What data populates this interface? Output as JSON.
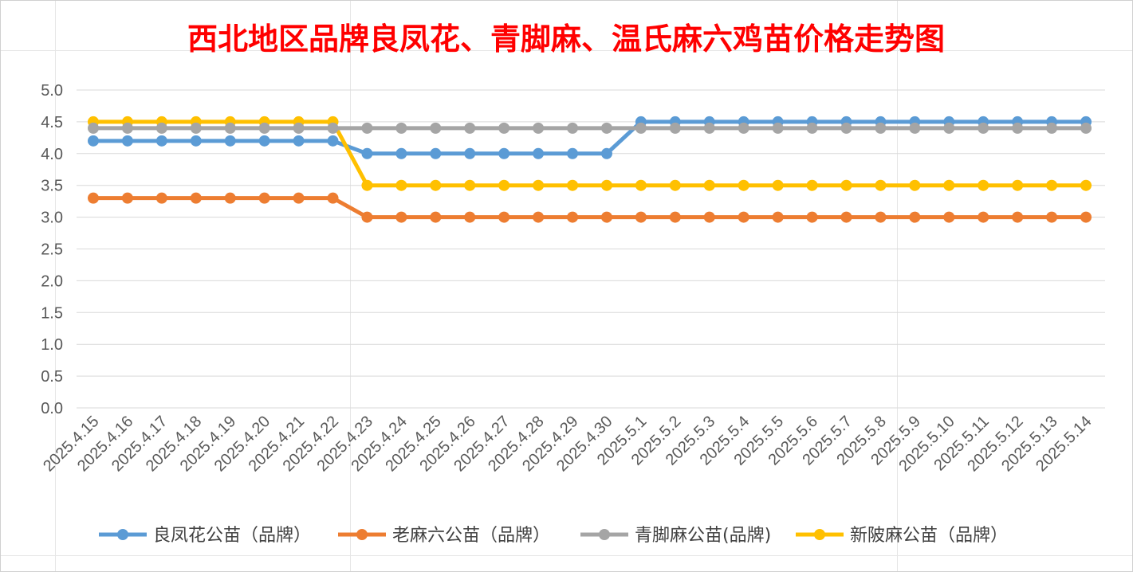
{
  "chart_data": {
    "type": "line",
    "title": "西北地区品牌良凤花、青脚麻、温氏麻六鸡苗价格走势图",
    "xlabel": "",
    "ylabel": "",
    "ylim": [
      0,
      5
    ],
    "ytick_step": 0.5,
    "ytick_labels": [
      "0.0",
      "0.5",
      "1.0",
      "1.5",
      "2.0",
      "2.5",
      "3.0",
      "3.5",
      "4.0",
      "4.5",
      "5.0"
    ],
    "grid": true,
    "legend_position": "bottom",
    "categories": [
      "2025.4.15",
      "2025.4.16",
      "2025.4.17",
      "2025.4.18",
      "2025.4.19",
      "2025.4.20",
      "2025.4.21",
      "2025.4.22",
      "2025.4.23",
      "2025.4.24",
      "2025.4.25",
      "2025.4.26",
      "2025.4.27",
      "2025.4.28",
      "2025.4.29",
      "2025.4.30",
      "2025.5.1",
      "2025.5.2",
      "2025.5.3",
      "2025.5.4",
      "2025.5.5",
      "2025.5.6",
      "2025.5.7",
      "2025.5.8",
      "2025.5.9",
      "2025.5.10",
      "2025.5.11",
      "2025.5.12",
      "2025.5.13",
      "2025.5.14"
    ],
    "series": [
      {
        "name": "良凤花公苗（品牌）",
        "color": "#5b9bd5",
        "values": [
          4.2,
          4.2,
          4.2,
          4.2,
          4.2,
          4.2,
          4.2,
          4.2,
          4.0,
          4.0,
          4.0,
          4.0,
          4.0,
          4.0,
          4.0,
          4.0,
          4.5,
          4.5,
          4.5,
          4.5,
          4.5,
          4.5,
          4.5,
          4.5,
          4.5,
          4.5,
          4.5,
          4.5,
          4.5,
          4.5
        ]
      },
      {
        "name": "老麻六公苗（品牌）",
        "color": "#ed7d31",
        "values": [
          3.3,
          3.3,
          3.3,
          3.3,
          3.3,
          3.3,
          3.3,
          3.3,
          3.0,
          3.0,
          3.0,
          3.0,
          3.0,
          3.0,
          3.0,
          3.0,
          3.0,
          3.0,
          3.0,
          3.0,
          3.0,
          3.0,
          3.0,
          3.0,
          3.0,
          3.0,
          3.0,
          3.0,
          3.0,
          3.0
        ]
      },
      {
        "name": "青脚麻公苗(品牌)",
        "color": "#a5a5a5",
        "values": [
          4.4,
          4.4,
          4.4,
          4.4,
          4.4,
          4.4,
          4.4,
          4.4,
          4.4,
          4.4,
          4.4,
          4.4,
          4.4,
          4.4,
          4.4,
          4.4,
          4.4,
          4.4,
          4.4,
          4.4,
          4.4,
          4.4,
          4.4,
          4.4,
          4.4,
          4.4,
          4.4,
          4.4,
          4.4,
          4.4
        ]
      },
      {
        "name": "新陂麻公苗（品牌）",
        "color": "#ffc000",
        "values": [
          4.5,
          4.5,
          4.5,
          4.5,
          4.5,
          4.5,
          4.5,
          4.5,
          3.5,
          3.5,
          3.5,
          3.5,
          3.5,
          3.5,
          3.5,
          3.5,
          3.5,
          3.5,
          3.5,
          3.5,
          3.5,
          3.5,
          3.5,
          3.5,
          3.5,
          3.5,
          3.5,
          3.5,
          3.5,
          3.5
        ]
      }
    ]
  },
  "colors": {
    "title": "#ff0000",
    "gridline": "#d9d9d9",
    "tick_text": "#595959"
  }
}
